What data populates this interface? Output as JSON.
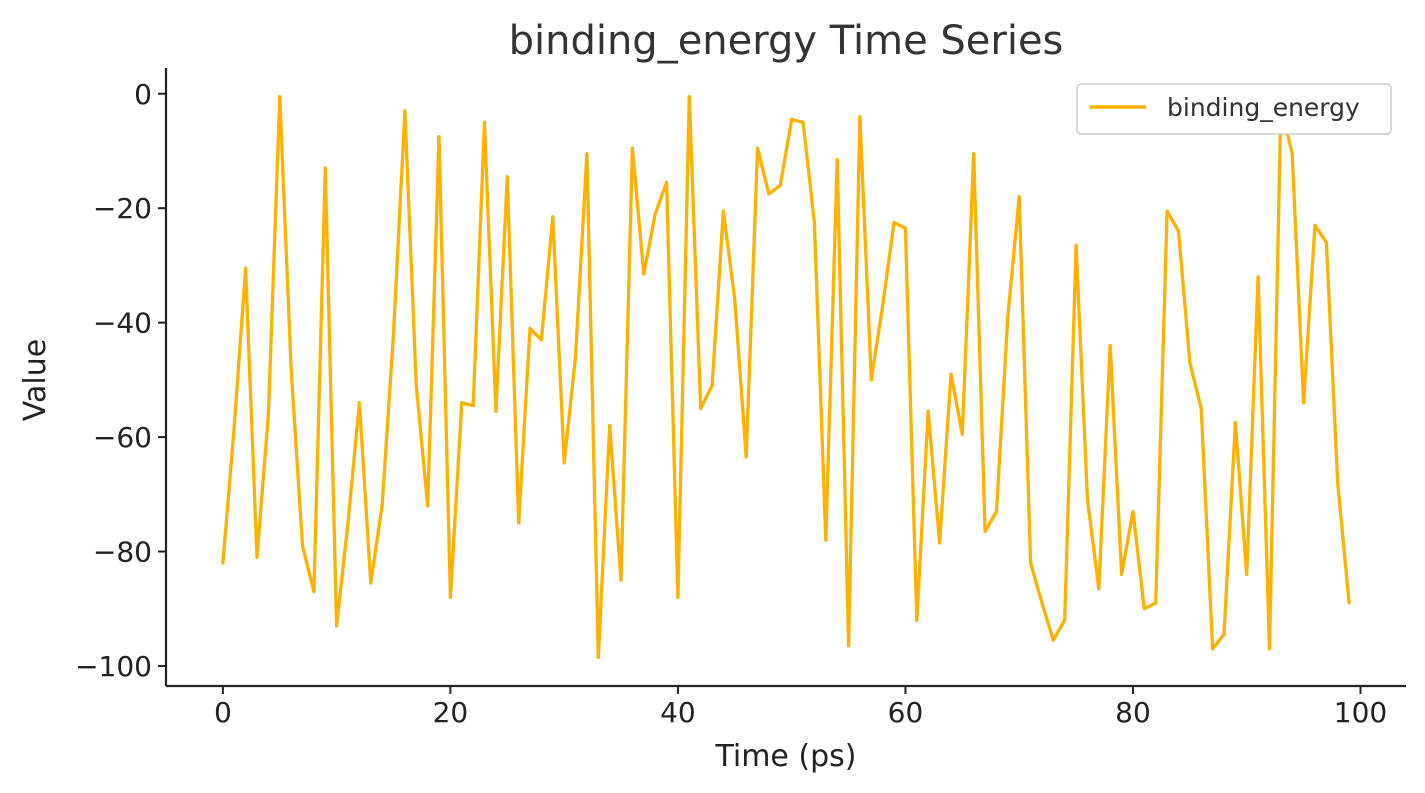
{
  "chart_data": {
    "type": "line",
    "title": "binding_energy Time Series",
    "xlabel": "Time (ps)",
    "ylabel": "Value",
    "xlim": [
      -5,
      104
    ],
    "ylim": [
      -103.5,
      4.5
    ],
    "xticks": [
      0,
      20,
      40,
      60,
      80,
      100
    ],
    "yticks": [
      0,
      -20,
      -40,
      -60,
      -80,
      -100
    ],
    "xtick_labels": [
      "0",
      "20",
      "40",
      "60",
      "80",
      "100"
    ],
    "ytick_labels": [
      "0",
      "−20",
      "−40",
      "−60",
      "−80",
      "−100"
    ],
    "grid": false,
    "legend_position": "top-right",
    "series": [
      {
        "name": "binding_energy",
        "color": "#FFB000",
        "x": [
          0,
          1,
          2,
          3,
          4,
          5,
          6,
          7,
          8,
          9,
          10,
          11,
          12,
          13,
          14,
          15,
          16,
          17,
          18,
          19,
          20,
          21,
          22,
          23,
          24,
          25,
          26,
          27,
          28,
          29,
          30,
          31,
          32,
          33,
          34,
          35,
          36,
          37,
          38,
          39,
          40,
          41,
          42,
          43,
          44,
          45,
          46,
          47,
          48,
          49,
          50,
          51,
          52,
          53,
          54,
          55,
          56,
          57,
          58,
          59,
          60,
          61,
          62,
          63,
          64,
          65,
          66,
          67,
          68,
          69,
          70,
          71,
          72,
          73,
          74,
          75,
          76,
          77,
          78,
          79,
          80,
          81,
          82,
          83,
          84,
          85,
          86,
          87,
          88,
          89,
          90,
          91,
          92,
          93,
          94,
          95,
          96,
          97,
          98,
          99
        ],
        "values": [
          -82,
          -58,
          -30.5,
          -81,
          -56,
          -0.5,
          -48,
          -79,
          -87,
          -13,
          -93,
          -75,
          -54,
          -85.5,
          -72,
          -42,
          -3,
          -51,
          -72,
          -7.5,
          -88,
          -54,
          -54.5,
          -5,
          -55.5,
          -14.5,
          -75,
          -41,
          -43,
          -21.5,
          -64.5,
          -46,
          -10.5,
          -98.5,
          -58,
          -85,
          -9.5,
          -31.5,
          -21,
          -15.5,
          -88,
          -0.5,
          -55,
          -51,
          -20.5,
          -36,
          -63.5,
          -9.5,
          -17.5,
          -16,
          -4.5,
          -5,
          -22.5,
          -78,
          -11.5,
          -96.5,
          -4,
          -50,
          -37,
          -22.5,
          -23.5,
          -92,
          -55.5,
          -78.5,
          -49,
          -59.5,
          -10.5,
          -76.5,
          -73,
          -39,
          -18,
          -82,
          -89,
          -95.5,
          -92,
          -26.5,
          -71,
          -86.5,
          -44,
          -84,
          -73,
          -90,
          -89,
          -20.5,
          -24,
          -47,
          -55,
          -97,
          -94.5,
          -57.5,
          -84,
          -32,
          -97,
          -2,
          -10.5,
          -54,
          -23,
          -26,
          -68,
          -89
        ]
      }
    ]
  }
}
